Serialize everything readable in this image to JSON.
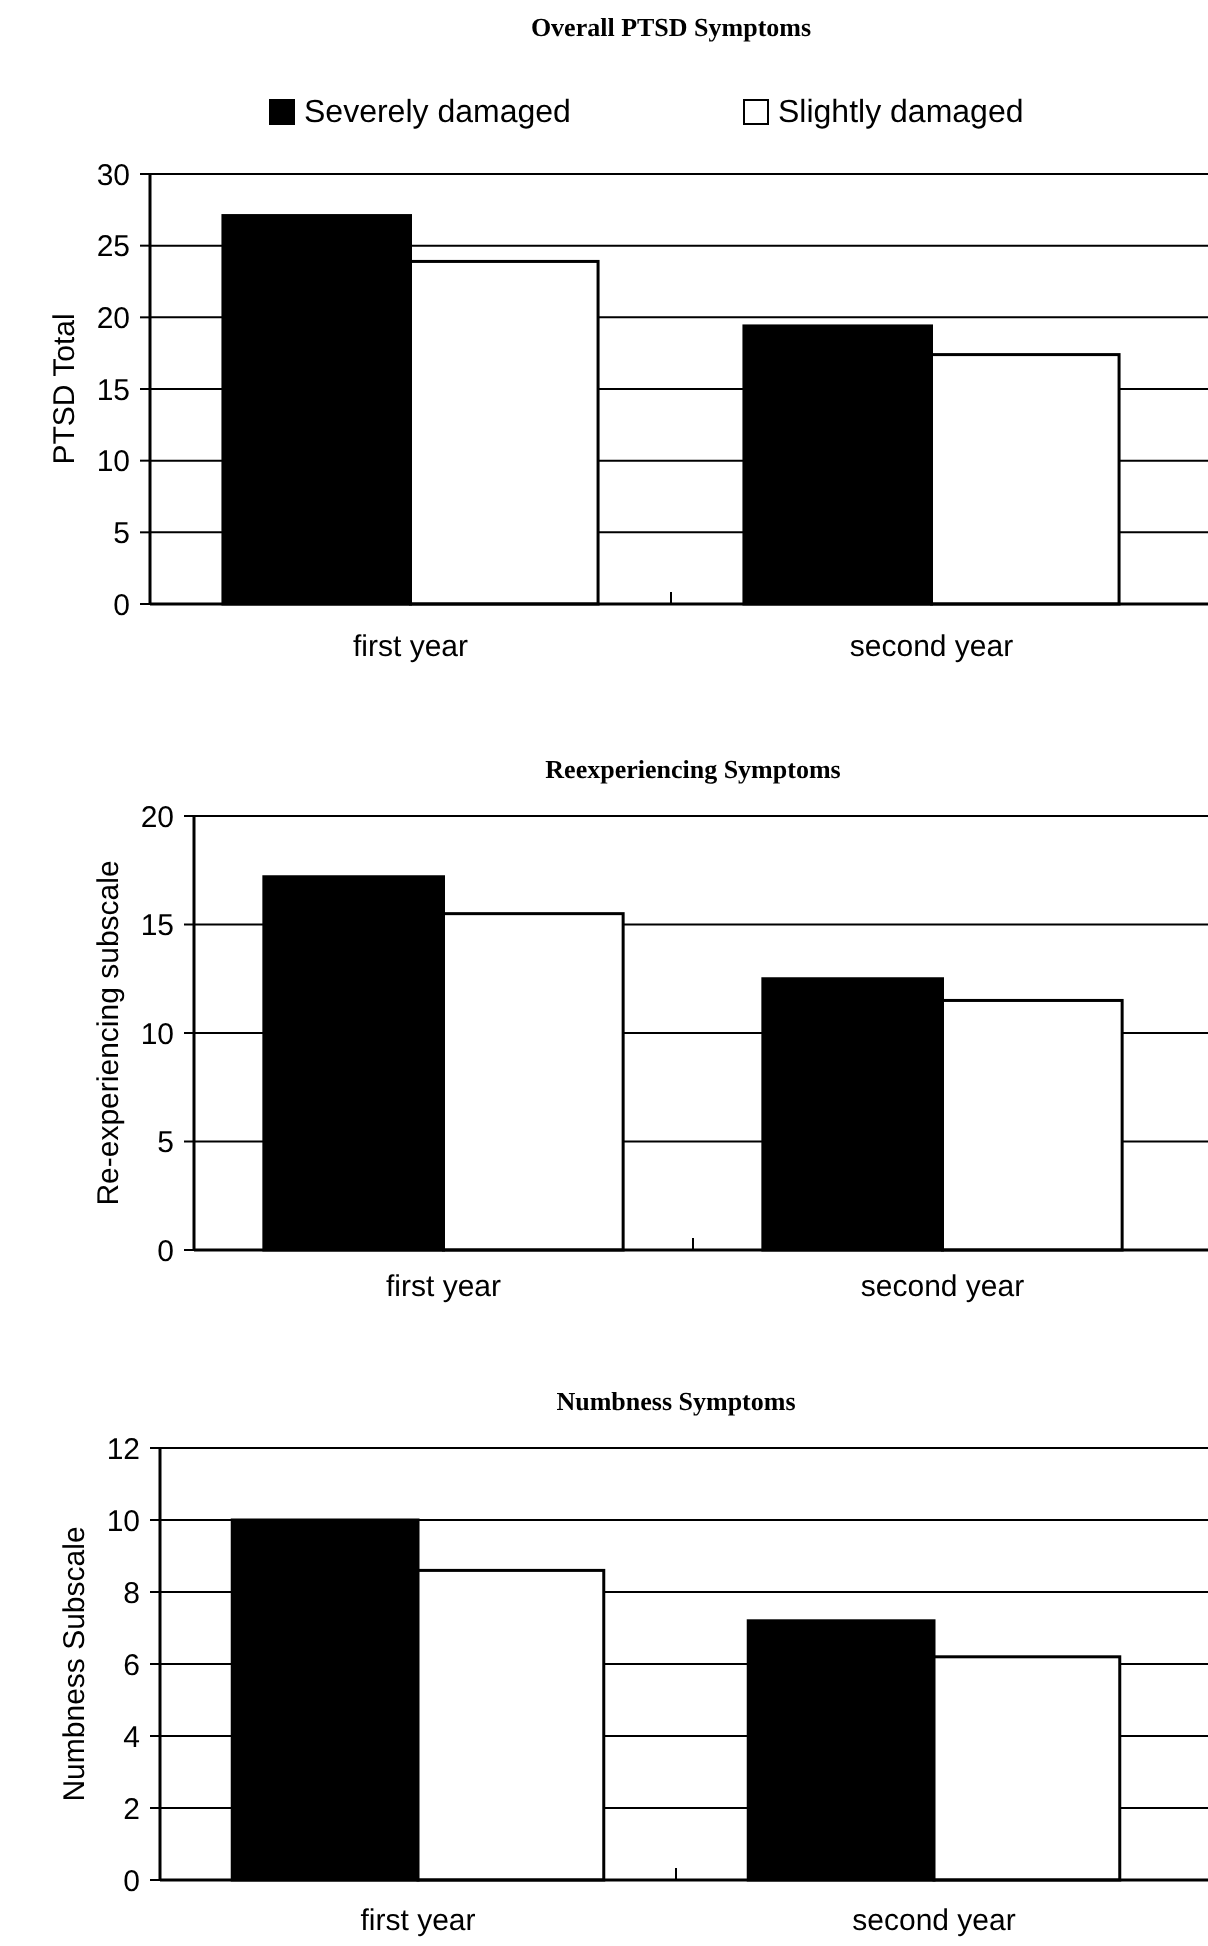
{
  "chart_data": [
    {
      "type": "bar",
      "title": "Overall PTSD Symptoms",
      "ylabel": "PTSD Total",
      "categories": [
        "first year",
        "second year"
      ],
      "series": [
        {
          "name": "Severely damaged",
          "color": "#000000",
          "values": [
            27.1,
            19.4
          ]
        },
        {
          "name": "Slightly damaged",
          "color": "#ffffff",
          "values": [
            23.9,
            17.4
          ]
        }
      ],
      "ylim": [
        0,
        30
      ],
      "yticks": [
        0,
        5,
        10,
        15,
        20,
        25,
        30
      ],
      "grid": "y",
      "legend": "top"
    },
    {
      "type": "bar",
      "title": "Reexperiencing Symptoms",
      "ylabel": "Re-experiencing subscale",
      "categories": [
        "first year",
        "second year"
      ],
      "series": [
        {
          "color": "#000000",
          "values": [
            17.2,
            12.5
          ]
        },
        {
          "color": "#ffffff",
          "values": [
            15.5,
            11.5
          ]
        }
      ],
      "ylim": [
        0,
        20
      ],
      "yticks": [
        0,
        5,
        10,
        15,
        20
      ],
      "grid": "y"
    },
    {
      "type": "bar",
      "title": "Numbness Symptoms",
      "ylabel": "Numbness Subscale",
      "categories": [
        "first year",
        "second year"
      ],
      "series": [
        {
          "color": "#000000",
          "values": [
            10.0,
            7.2
          ]
        },
        {
          "color": "#ffffff",
          "values": [
            8.6,
            6.2
          ]
        }
      ],
      "ylim": [
        0,
        12
      ],
      "yticks": [
        0,
        2,
        4,
        6,
        8,
        10,
        12
      ],
      "grid": "y"
    }
  ]
}
